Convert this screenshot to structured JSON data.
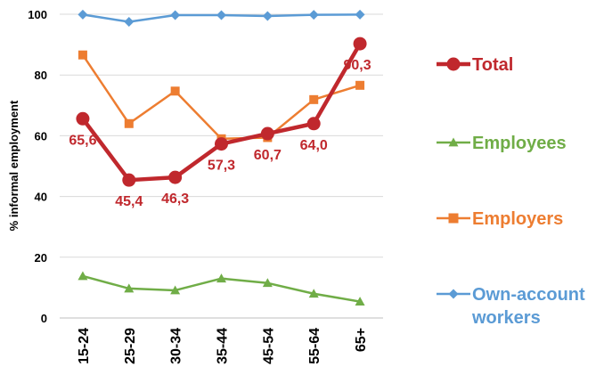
{
  "chart_data": {
    "type": "line",
    "title": "",
    "xlabel": "",
    "ylabel": "% informal employment",
    "categories": [
      "15-24",
      "25-29",
      "30-34",
      "35-44",
      "45-54",
      "55-64",
      "65+"
    ],
    "ylim": [
      0,
      100
    ],
    "yticks": [
      0,
      20,
      40,
      60,
      80,
      100
    ],
    "grid": "horizontal",
    "legend_position": "right",
    "series": [
      {
        "name": "Total",
        "color": "#c0282d",
        "marker": "circle",
        "values": [
          65.6,
          45.4,
          46.3,
          57.3,
          60.7,
          64.0,
          90.3
        ],
        "labels": [
          "65,6",
          "45,4",
          "46,3",
          "57,3",
          "60,7",
          "64,0",
          "90,3"
        ]
      },
      {
        "name": "Employees",
        "color": "#70ad47",
        "marker": "triangle",
        "values": [
          13.8,
          9.7,
          9.1,
          13.0,
          11.5,
          8.0,
          5.4
        ]
      },
      {
        "name": "Employers",
        "color": "#ed7d31",
        "marker": "square",
        "values": [
          86.6,
          64.0,
          74.7,
          59.0,
          59.4,
          71.9,
          76.6
        ]
      },
      {
        "name": "Own-account workers",
        "color": "#5b9bd5",
        "marker": "diamond",
        "values": [
          99.9,
          97.5,
          99.7,
          99.7,
          99.4,
          99.8,
          99.9
        ]
      }
    ]
  }
}
